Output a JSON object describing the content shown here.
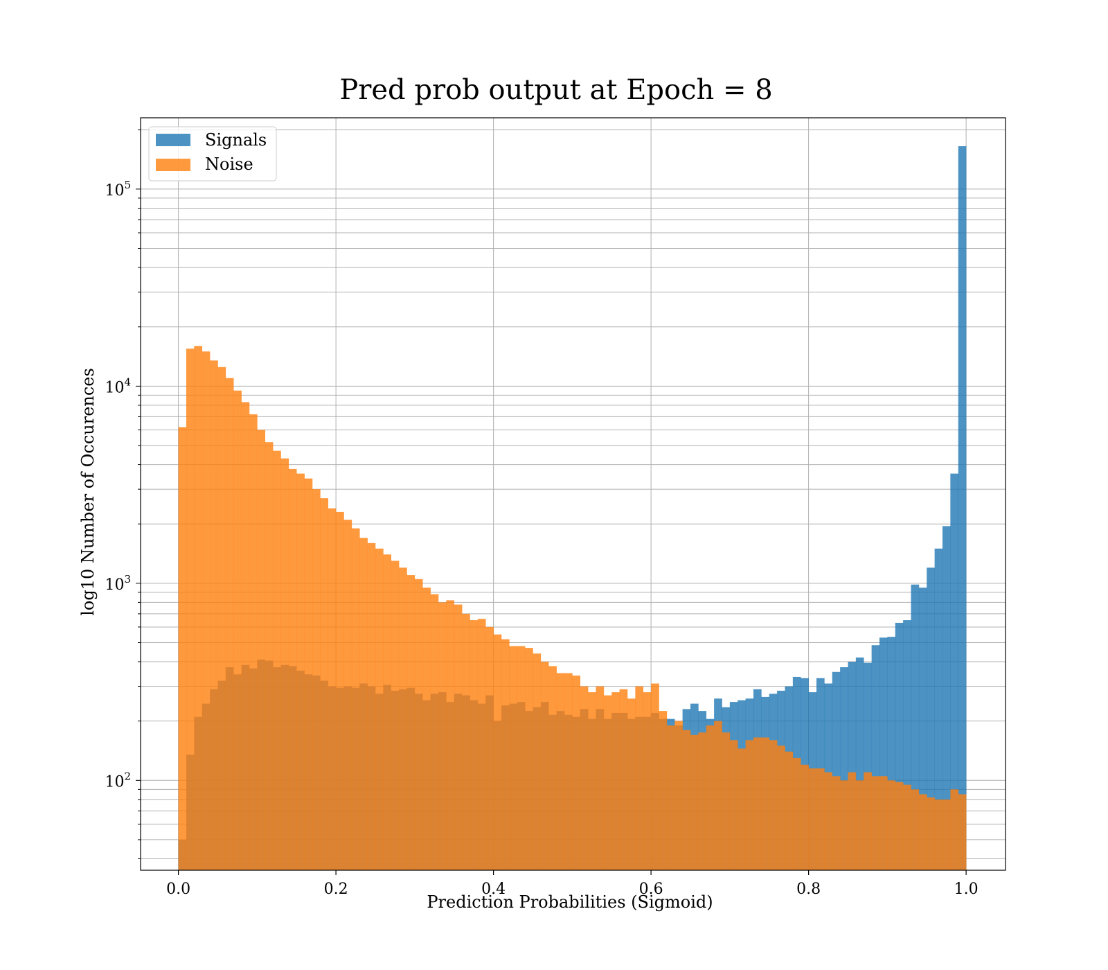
{
  "chart_data": {
    "type": "histogram",
    "title": "Pred prob output at Epoch = 8",
    "xlabel": "Prediction Probabilities (Sigmoid)",
    "ylabel": "log10 Number of Occurences",
    "xlim": [
      -0.048,
      1.05
    ],
    "ylim": [
      35,
      230000
    ],
    "yscale": "log",
    "grid": true,
    "legend_position": "top-left",
    "x_ticks": [
      "0.0",
      "0.2",
      "0.4",
      "0.6",
      "0.8",
      "1.0"
    ],
    "x_tick_values": [
      0.0,
      0.2,
      0.4,
      0.6,
      0.8,
      1.0
    ],
    "y_ticks": [
      {
        "base": "10",
        "exp": "2",
        "value": 100
      },
      {
        "base": "10",
        "exp": "3",
        "value": 1000
      },
      {
        "base": "10",
        "exp": "4",
        "value": 10000
      },
      {
        "base": "10",
        "exp": "5",
        "value": 100000
      }
    ],
    "bin_start": 0.0,
    "bin_width": 0.01,
    "series": [
      {
        "name": "Signals",
        "color": "#1f77b4",
        "values": [
          50,
          135,
          210,
          245,
          290,
          320,
          375,
          345,
          385,
          370,
          410,
          405,
          375,
          385,
          380,
          360,
          345,
          340,
          320,
          300,
          295,
          300,
          295,
          310,
          300,
          275,
          305,
          285,
          290,
          295,
          275,
          255,
          275,
          280,
          250,
          275,
          270,
          255,
          245,
          270,
          200,
          240,
          245,
          250,
          225,
          235,
          250,
          215,
          225,
          215,
          210,
          230,
          205,
          230,
          205,
          220,
          220,
          205,
          210,
          210,
          220,
          205,
          205,
          190,
          230,
          245,
          225,
          205,
          260,
          235,
          250,
          255,
          260,
          290,
          265,
          275,
          285,
          300,
          335,
          330,
          280,
          330,
          310,
          355,
          375,
          400,
          420,
          395,
          485,
          530,
          535,
          630,
          650,
          985,
          950,
          1200,
          1500,
          1950,
          3600,
          165000
        ]
      },
      {
        "name": "Noise",
        "color": "#ff7f0e",
        "values": [
          6200,
          15500,
          16000,
          15000,
          13500,
          12500,
          11000,
          9500,
          8300,
          7200,
          6000,
          5200,
          4700,
          4300,
          3800,
          3600,
          3400,
          3000,
          2700,
          2400,
          2300,
          2100,
          1900,
          1700,
          1600,
          1500,
          1400,
          1300,
          1200,
          1100,
          1050,
          950,
          880,
          800,
          820,
          780,
          700,
          650,
          660,
          600,
          550,
          520,
          480,
          480,
          470,
          440,
          400,
          380,
          350,
          350,
          340,
          300,
          280,
          300,
          270,
          280,
          290,
          260,
          300,
          280,
          310,
          225,
          190,
          200,
          180,
          170,
          175,
          190,
          200,
          175,
          160,
          145,
          160,
          165,
          165,
          160,
          150,
          140,
          130,
          120,
          115,
          115,
          110,
          105,
          100,
          110,
          100,
          110,
          105,
          105,
          100,
          98,
          95,
          90,
          85,
          82,
          80,
          80,
          90,
          85
        ]
      }
    ]
  }
}
